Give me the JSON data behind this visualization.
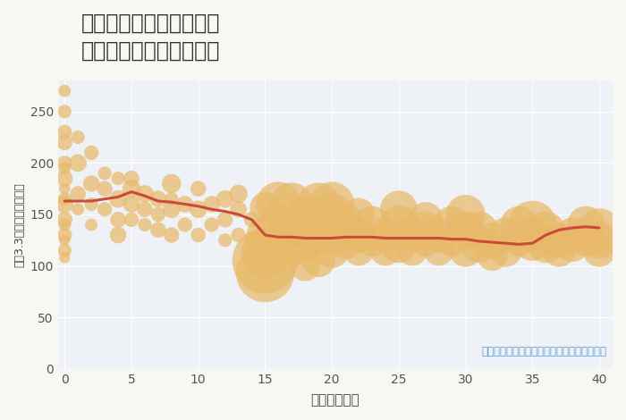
{
  "title": "神奈川県新百合ヶ丘駅の\n築年数別中古戸建て価格",
  "xlabel": "築年数（年）",
  "ylabel": "坪（3.3㎡）単価（万円）",
  "annotation": "円の大きさは、取引のあった物件面積を示す",
  "bg_color": "#f8f7f2",
  "plot_bg_color": "#eef2f7",
  "bubble_color": "#e8b96a",
  "bubble_alpha": 0.72,
  "line_color": "#c94c38",
  "line_width": 2.2,
  "xlim": [
    -0.5,
    41
  ],
  "ylim": [
    0,
    280
  ],
  "xticks": [
    0,
    5,
    10,
    15,
    20,
    25,
    30,
    35,
    40
  ],
  "yticks": [
    0,
    50,
    100,
    150,
    200,
    250
  ],
  "scatter_x": [
    0,
    0,
    0,
    0,
    0,
    0,
    0,
    0,
    0,
    0,
    0,
    0,
    0,
    0,
    0,
    0,
    1,
    1,
    1,
    1,
    2,
    2,
    2,
    2,
    3,
    3,
    3,
    4,
    4,
    4,
    4,
    5,
    5,
    5,
    5,
    6,
    6,
    6,
    7,
    7,
    7,
    8,
    8,
    8,
    8,
    9,
    9,
    10,
    10,
    10,
    11,
    11,
    12,
    12,
    12,
    13,
    13,
    13,
    14,
    14,
    15,
    15,
    15,
    15,
    15,
    16,
    16,
    16,
    16,
    17,
    17,
    17,
    18,
    18,
    18,
    18,
    19,
    19,
    19,
    20,
    20,
    20,
    20,
    21,
    21,
    22,
    22,
    22,
    23,
    23,
    24,
    24,
    25,
    25,
    25,
    26,
    26,
    27,
    27,
    27,
    28,
    28,
    29,
    29,
    30,
    30,
    30,
    31,
    31,
    32,
    32,
    33,
    33,
    34,
    34,
    35,
    35,
    35,
    36,
    36,
    37,
    37,
    38,
    38,
    39,
    39,
    40,
    40,
    40
  ],
  "scatter_y": [
    165,
    140,
    125,
    200,
    220,
    250,
    270,
    185,
    160,
    130,
    115,
    175,
    195,
    230,
    145,
    108,
    200,
    225,
    155,
    170,
    180,
    210,
    160,
    140,
    175,
    190,
    155,
    165,
    145,
    185,
    130,
    175,
    160,
    145,
    185,
    170,
    155,
    140,
    165,
    150,
    135,
    180,
    155,
    130,
    165,
    160,
    140,
    155,
    175,
    130,
    160,
    140,
    165,
    145,
    125,
    155,
    130,
    170,
    145,
    125,
    105,
    93,
    130,
    112,
    157,
    125,
    160,
    140,
    115,
    135,
    160,
    115,
    130,
    150,
    120,
    100,
    160,
    130,
    105,
    135,
    150,
    115,
    160,
    125,
    145,
    130,
    115,
    150,
    140,
    125,
    130,
    115,
    140,
    120,
    155,
    130,
    115,
    125,
    135,
    145,
    130,
    115,
    125,
    140,
    135,
    115,
    150,
    120,
    135,
    125,
    110,
    130,
    115,
    125,
    140,
    140,
    125,
    130,
    120,
    135,
    125,
    115,
    130,
    120,
    125,
    140,
    135,
    125,
    115
  ],
  "scatter_size": [
    120,
    100,
    80,
    140,
    160,
    120,
    100,
    180,
    200,
    140,
    120,
    80,
    100,
    140,
    160,
    80,
    200,
    120,
    100,
    160,
    180,
    140,
    120,
    100,
    160,
    120,
    140,
    200,
    160,
    120,
    180,
    220,
    180,
    140,
    160,
    200,
    160,
    120,
    180,
    140,
    160,
    240,
    200,
    160,
    120,
    180,
    140,
    200,
    160,
    140,
    180,
    140,
    200,
    160,
    120,
    180,
    140,
    220,
    160,
    120,
    2800,
    2200,
    900,
    1500,
    600,
    700,
    1300,
    1100,
    600,
    900,
    1200,
    700,
    500,
    900,
    700,
    600,
    1200,
    900,
    700,
    1500,
    1200,
    800,
    1300,
    900,
    700,
    800,
    600,
    700,
    900,
    700,
    800,
    600,
    1000,
    800,
    900,
    800,
    600,
    700,
    900,
    800,
    800,
    600,
    700,
    900,
    900,
    700,
    1000,
    800,
    900,
    800,
    600,
    800,
    700,
    700,
    900,
    1500,
    1100,
    800,
    800,
    900,
    800,
    700,
    800,
    700,
    700,
    900,
    1200,
    900,
    700
  ],
  "trend_x": [
    0,
    1,
    2,
    3,
    4,
    5,
    6,
    7,
    8,
    9,
    10,
    11,
    12,
    13,
    14,
    15,
    16,
    17,
    18,
    19,
    20,
    21,
    22,
    23,
    24,
    25,
    26,
    27,
    28,
    29,
    30,
    31,
    32,
    33,
    34,
    35,
    36,
    37,
    38,
    39,
    40
  ],
  "trend_y": [
    163,
    163,
    163,
    165,
    167,
    172,
    168,
    163,
    162,
    160,
    158,
    155,
    153,
    150,
    145,
    130,
    128,
    128,
    127,
    127,
    127,
    128,
    128,
    128,
    127,
    127,
    127,
    127,
    127,
    126,
    126,
    124,
    123,
    122,
    121,
    122,
    130,
    135,
    137,
    138,
    137
  ]
}
